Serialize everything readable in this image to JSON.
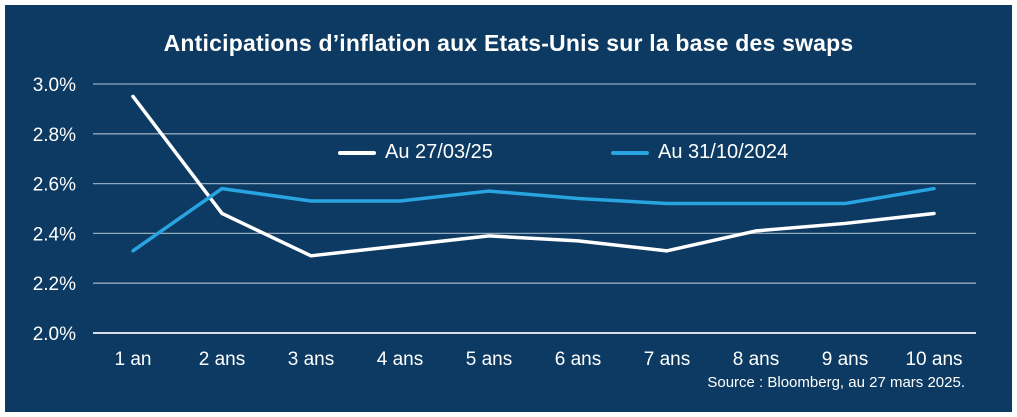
{
  "title": "Anticipations d’inflation aux Etats-Unis sur la base des swaps",
  "source": "Source : Bloomberg, au 27 mars 2025.",
  "colors": {
    "background": "#0c3a62",
    "border": "#ffffff",
    "text": "#ffffff",
    "gridline": "#aebdcc",
    "baseline": "#d8dde3",
    "series_white": "#ffffff",
    "series_blue": "#28a4e0"
  },
  "legend": [
    {
      "label": "Au 27/03/25",
      "color": "#ffffff"
    },
    {
      "label": "Au 31/10/2024",
      "color": "#28a4e0"
    }
  ],
  "chart_data": {
    "type": "line",
    "categories": [
      "1 an",
      "2 ans",
      "3 ans",
      "4 ans",
      "5 ans",
      "6 ans",
      "7 ans",
      "8 ans",
      "9 ans",
      "10 ans"
    ],
    "series": [
      {
        "name": "Au 27/03/25",
        "color": "#ffffff",
        "values": [
          2.95,
          2.48,
          2.31,
          2.35,
          2.39,
          2.37,
          2.33,
          2.41,
          2.44,
          2.48
        ]
      },
      {
        "name": "Au 31/10/2024",
        "color": "#28a4e0",
        "values": [
          2.33,
          2.58,
          2.53,
          2.53,
          2.57,
          2.54,
          2.52,
          2.52,
          2.52,
          2.58
        ]
      }
    ],
    "title": "Anticipations d’inflation aux Etats-Unis sur la base des swaps",
    "xlabel": "",
    "ylabel": "",
    "ylim": [
      2.0,
      3.0
    ],
    "yticks": {
      "labels": [
        "3.0%",
        "2.8%",
        "2.6%",
        "2.4%",
        "2.2%",
        "2.0%"
      ],
      "values": [
        3.0,
        2.8,
        2.6,
        2.4,
        2.2,
        2.0
      ]
    },
    "grid": true,
    "legend_position": "top-center"
  }
}
